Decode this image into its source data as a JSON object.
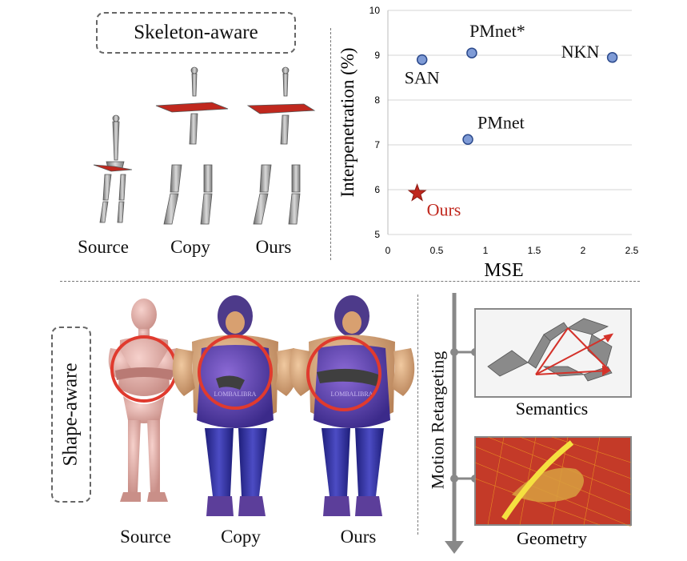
{
  "top": {
    "skeleton_label": "Skeleton-aware",
    "captions": [
      "Source",
      "Copy",
      "Ours"
    ]
  },
  "bottom": {
    "shape_label": "Shape-aware",
    "captions": [
      "Source",
      "Copy",
      "Ours"
    ],
    "chest_text": "LOMBALIBRA",
    "motion_label": "Motion Retargeting",
    "semantics_label": "Semantics",
    "geometry_label": "Geometry"
  },
  "chart_data": {
    "type": "scatter",
    "xlabel": "MSE",
    "ylabel": "Interpenetration (%)",
    "xlim": [
      0,
      2.5
    ],
    "ylim": [
      5,
      10
    ],
    "xticks": [
      "0",
      "0.5",
      "1",
      "1.5",
      "2",
      "2.5"
    ],
    "yticks": [
      "5",
      "6",
      "7",
      "8",
      "9",
      "10"
    ],
    "points": [
      {
        "label": "SAN",
        "x": 0.35,
        "y": 8.9,
        "marker": "circle"
      },
      {
        "label": "PMnet*",
        "x": 0.86,
        "y": 9.05,
        "marker": "circle"
      },
      {
        "label": "NKN",
        "x": 2.3,
        "y": 8.95,
        "marker": "circle"
      },
      {
        "label": "PMnet",
        "x": 0.82,
        "y": 7.12,
        "marker": "circle"
      },
      {
        "label": "Ours",
        "x": 0.3,
        "y": 5.92,
        "marker": "star"
      }
    ],
    "colors": {
      "point": "#7f9bd6",
      "point_stroke": "#2c4a8c",
      "ours": "#c0281e"
    }
  }
}
